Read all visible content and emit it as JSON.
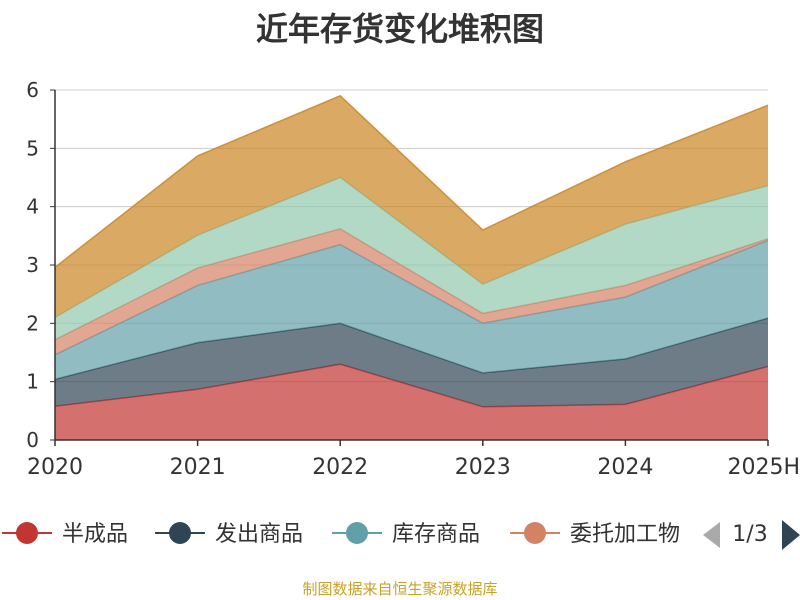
{
  "chart_data": {
    "type": "area",
    "stacked": true,
    "title": "近年存货变化堆积图",
    "x": [
      "2020",
      "2021",
      "2022",
      "2023",
      "2024",
      "2025H"
    ],
    "ylim": [
      0,
      6
    ],
    "yticks": [
      "0",
      "1",
      "2",
      "3",
      "4",
      "5",
      "6"
    ],
    "grid": true,
    "series": [
      {
        "name": "半成品",
        "color": "#c23531",
        "values": [
          0.58,
          0.87,
          1.3,
          0.57,
          0.61,
          1.26
        ]
      },
      {
        "name": "发出商品",
        "color": "#2f4554",
        "values": [
          0.46,
          0.8,
          0.7,
          0.58,
          0.78,
          0.83
        ]
      },
      {
        "name": "库存商品",
        "color": "#61a0a8",
        "values": [
          0.42,
          0.98,
          1.35,
          0.85,
          1.06,
          1.33
        ]
      },
      {
        "name": "委托加工物资",
        "color": "#d48265",
        "values": [
          0.26,
          0.3,
          0.27,
          0.17,
          0.2,
          0.03
        ]
      },
      {
        "name": "",
        "color": "#91c7ae",
        "values": [
          0.38,
          0.56,
          0.88,
          0.5,
          1.05,
          0.91
        ]
      },
      {
        "name": "",
        "color": "#ca8622",
        "values": [
          0.86,
          1.36,
          1.4,
          0.93,
          1.07,
          1.38
        ]
      }
    ],
    "legend": {
      "position": "bottom",
      "items": [
        "半成品",
        "发出商品",
        "库存商品",
        "委托加工物"
      ],
      "page": "1/3"
    },
    "source": "制图数据来自恒生聚源数据库"
  }
}
